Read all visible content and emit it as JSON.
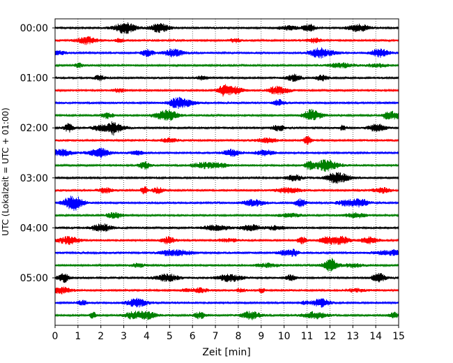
{
  "chart_data": {
    "type": "line",
    "subtype": "helicorder-seismogram",
    "xlabel": "Zeit  [min]",
    "ylabel": "UTC (Lokalzeit = UTC + 01:00)",
    "xlim": [
      0,
      15
    ],
    "x_ticks": [
      "0",
      "1",
      "2",
      "3",
      "4",
      "5",
      "6",
      "7",
      "8",
      "9",
      "10",
      "11",
      "12",
      "13",
      "14",
      "15"
    ],
    "y_tick_labels": [
      "00:00",
      "01:00",
      "02:00",
      "03:00",
      "04:00",
      "05:00"
    ],
    "grid": "vertical dotted at each minute",
    "trace_colors": [
      "#000000",
      "#ff0000",
      "#0000ff",
      "#008000"
    ],
    "trace_interval_minutes": 15,
    "trace_count": 24,
    "trace_start_times": [
      "00:00",
      "00:15",
      "00:30",
      "00:45",
      "01:00",
      "01:15",
      "01:30",
      "01:45",
      "02:00",
      "02:15",
      "02:30",
      "02:45",
      "03:00",
      "03:15",
      "03:30",
      "03:45",
      "04:00",
      "04:15",
      "04:30",
      "04:45",
      "05:00",
      "05:15",
      "05:30",
      "05:45"
    ]
  }
}
